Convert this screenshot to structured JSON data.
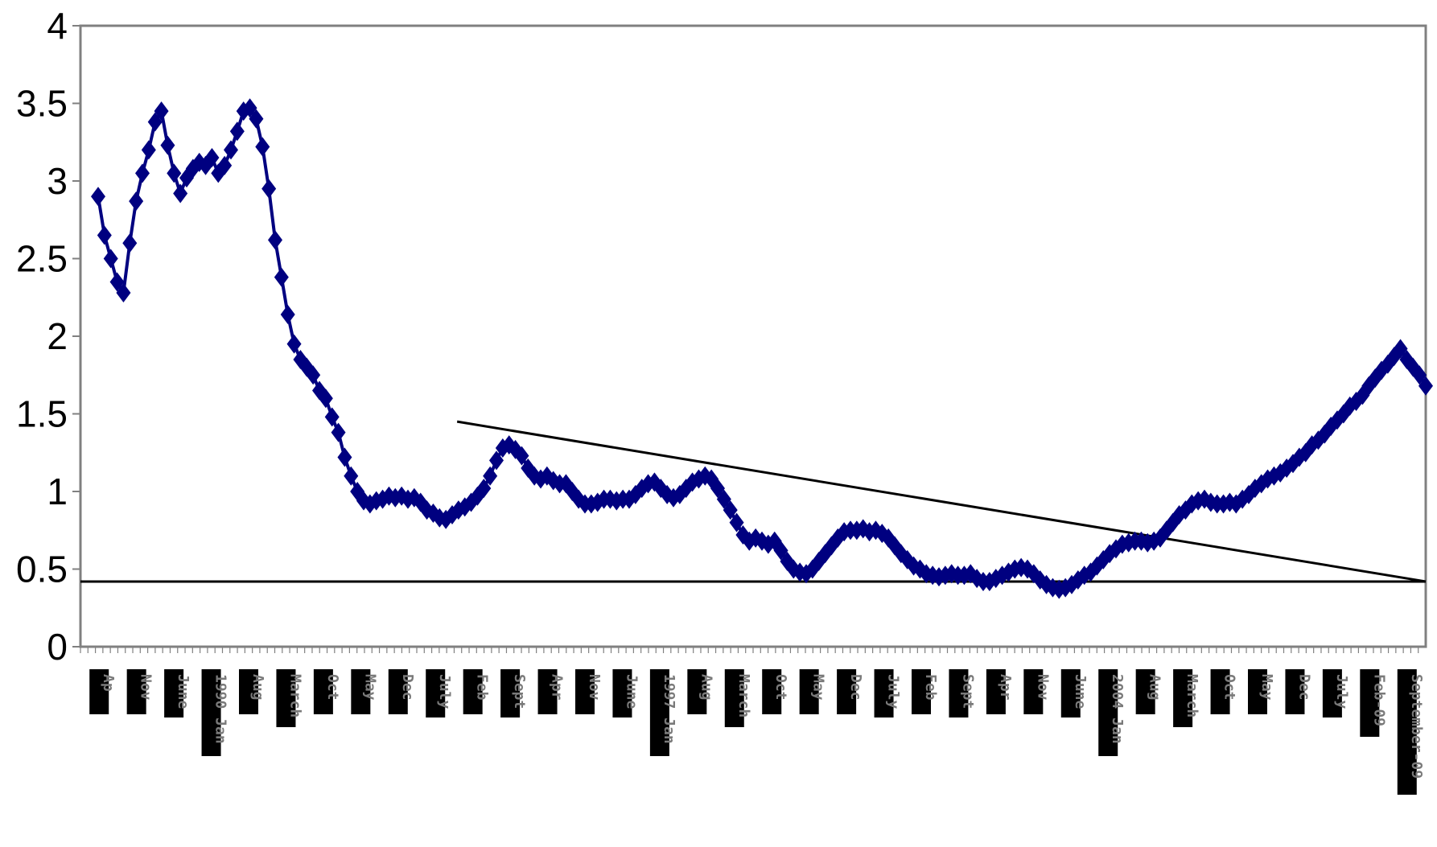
{
  "chart_data": {
    "type": "line",
    "title": "",
    "xlabel": "",
    "ylabel": "",
    "ylim": [
      0,
      4
    ],
    "yticks": [
      "0",
      "0.5",
      "1",
      "1.5",
      "2",
      "2.5",
      "3",
      "3.5",
      "4"
    ],
    "grid": false,
    "legend": "none",
    "colors": {
      "series": "#000080",
      "trendline": "#000000",
      "axis": "#808080",
      "tick_label_box": "#000000"
    },
    "xtick_labels": [
      "Ap",
      "Nov",
      "June",
      "1990 Jan",
      "Aug",
      "March",
      "Oct",
      "May",
      "Dec",
      "July",
      "Feb",
      "Sept",
      "Apr",
      "Nov",
      "June",
      "1997 Jan",
      "Aug",
      "March",
      "Oct",
      "May",
      "Dec",
      "July",
      "Feb",
      "Sept",
      "Apr",
      "Nov",
      "June",
      "2004 Jan",
      "Aug",
      "March",
      "Oct",
      "May",
      "Dec",
      "July",
      "Feb-09",
      "September-09"
    ],
    "series": [
      {
        "x_index_start": 0,
        "values": [
          2.9,
          2.65,
          2.5,
          2.35,
          2.28,
          2.6,
          2.87,
          3.05,
          3.2,
          3.38,
          3.45,
          3.23,
          3.05,
          2.92,
          3.02,
          3.08,
          3.12,
          3.1,
          3.15,
          3.05,
          3.1,
          3.2,
          3.32,
          3.45,
          3.47,
          3.4,
          3.22,
          2.95,
          2.62,
          2.38,
          2.14,
          1.95,
          1.85,
          1.8,
          1.75,
          1.65,
          1.6,
          1.48,
          1.38,
          1.22,
          1.1,
          1.0,
          0.94,
          0.92,
          0.94,
          0.95,
          0.97,
          0.96,
          0.97,
          0.95,
          0.96,
          0.93,
          0.88,
          0.86,
          0.83,
          0.82,
          0.85,
          0.88,
          0.9,
          0.93,
          0.97,
          1.02,
          1.1,
          1.2,
          1.28,
          1.3,
          1.27,
          1.23,
          1.15,
          1.1,
          1.08,
          1.1,
          1.07,
          1.05,
          1.05,
          1.0,
          0.95,
          0.92,
          0.92,
          0.93,
          0.95,
          0.95,
          0.94,
          0.95,
          0.95,
          0.98,
          1.02,
          1.05,
          1.06,
          1.02,
          0.98,
          0.96,
          0.98,
          1.02,
          1.06,
          1.08,
          1.1,
          1.08,
          1.02,
          0.95,
          0.88,
          0.8,
          0.72,
          0.68,
          0.7,
          0.68,
          0.66,
          0.68,
          0.62,
          0.55,
          0.5,
          0.48,
          0.47,
          0.5,
          0.55,
          0.6,
          0.65,
          0.7,
          0.74,
          0.75,
          0.75,
          0.76,
          0.74,
          0.75,
          0.73,
          0.7,
          0.65,
          0.6,
          0.56,
          0.52,
          0.5,
          0.47,
          0.46,
          0.45,
          0.46,
          0.47,
          0.46,
          0.46,
          0.47,
          0.44,
          0.42,
          0.42,
          0.44,
          0.46,
          0.48,
          0.5,
          0.51,
          0.5,
          0.47,
          0.43,
          0.4,
          0.38,
          0.37,
          0.38,
          0.4,
          0.43,
          0.46,
          0.48,
          0.52,
          0.56,
          0.6,
          0.63,
          0.66,
          0.67,
          0.68,
          0.68,
          0.67,
          0.68,
          0.7,
          0.75,
          0.8,
          0.85,
          0.88,
          0.92,
          0.94,
          0.95,
          0.93,
          0.92,
          0.92,
          0.93,
          0.92,
          0.95,
          0.98,
          1.02,
          1.05,
          1.08,
          1.1,
          1.12,
          1.15,
          1.18,
          1.22,
          1.25,
          1.3,
          1.33,
          1.37,
          1.42,
          1.46,
          1.5,
          1.55,
          1.58,
          1.62,
          1.68,
          1.73,
          1.78,
          1.82,
          1.87,
          1.92,
          1.85,
          1.8,
          1.75,
          1.68
        ]
      }
    ],
    "reference_lines": [
      {
        "type": "horizontal",
        "y": 0.42
      },
      {
        "type": "trend",
        "x_start_frac": 0.28,
        "y_start": 1.45,
        "x_end_frac": 1.0,
        "y_end": 0.42
      }
    ]
  }
}
